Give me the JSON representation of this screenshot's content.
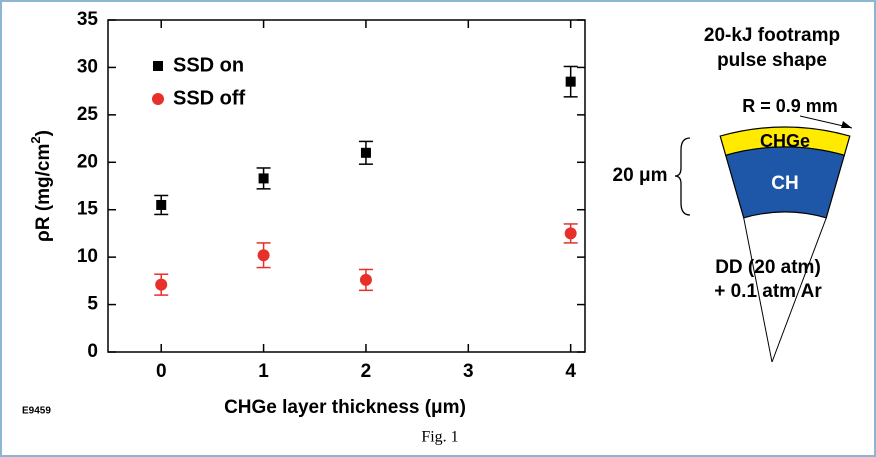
{
  "chart_data": {
    "type": "scatter",
    "x_label": "CHGe layer thickness (μm)",
    "y_label_parts": [
      "ρR (mg/cm",
      "2",
      ")"
    ],
    "x": [
      0,
      1,
      2,
      4
    ],
    "series": [
      {
        "name": "SSD on",
        "color": "#000000",
        "marker": "square",
        "values": [
          15.5,
          18.3,
          21,
          28.5
        ],
        "errors": [
          1,
          1.1,
          1.2,
          1.6
        ]
      },
      {
        "name": "SSD off",
        "color": "#e8302a",
        "marker": "circle",
        "values": [
          7.1,
          10.2,
          7.6,
          12.5
        ],
        "errors": [
          1.1,
          1.3,
          1.1,
          1
        ]
      }
    ],
    "xlim": [
      -0.52,
      4.14
    ],
    "xticks": [
      0,
      1,
      2,
      3,
      4
    ],
    "ylim": [
      0,
      35
    ],
    "yticks": [
      0,
      5,
      10,
      15,
      20,
      25,
      30,
      35
    ],
    "legend": "upper left"
  },
  "diagram": {
    "title_lines": [
      "20-kJ footramp",
      "pulse shape"
    ],
    "radius_label": "R = 0.9 mm",
    "outer_layer": "CHGe",
    "inner_layer": "CH",
    "thickness_label": "20 μm",
    "gas_lines": [
      "DD (20 atm)",
      "+ 0.1 atm Ar"
    ]
  },
  "figure_id": "E9459",
  "caption": "Fig. 1"
}
